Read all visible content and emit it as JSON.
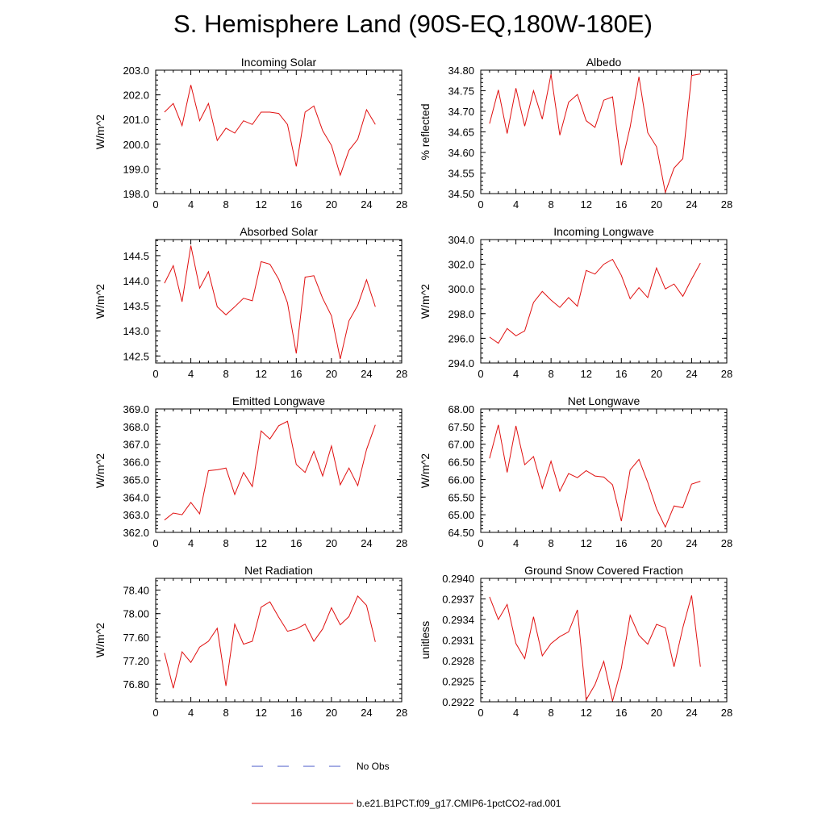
{
  "page_title": "S. Hemisphere Land (90S-EQ,180W-180E)",
  "legend": {
    "no_obs_label": "No Obs",
    "no_obs_color": "#4a5ac8",
    "run_label": "b.e21.B1PCT.f09_g17.CMIP6-1pctCO2-rad.001",
    "run_color": "#e01010"
  },
  "chart_data": [
    {
      "type": "line",
      "title": "Incoming Solar",
      "xlabel": "",
      "ylabel": "W/m^2",
      "xlim": [
        0,
        28
      ],
      "ylim": [
        198.0,
        203.0
      ],
      "xticks": [
        "0",
        "4",
        "8",
        "12",
        "16",
        "20",
        "24",
        "28"
      ],
      "yticks": [
        "198.0",
        "199.0",
        "200.0",
        "201.0",
        "202.0",
        "203.0"
      ],
      "series": [
        {
          "color": "#e01010",
          "x": [
            1,
            2,
            3,
            4,
            5,
            6,
            7,
            8,
            9,
            10,
            11,
            12,
            13,
            14,
            15,
            16,
            17,
            18,
            19,
            20,
            21,
            22,
            23,
            24,
            25
          ],
          "y": [
            201.3,
            201.65,
            200.75,
            202.4,
            200.95,
            201.65,
            200.15,
            200.65,
            200.45,
            200.95,
            200.8,
            201.3,
            201.3,
            201.25,
            200.8,
            199.1,
            201.3,
            201.55,
            200.55,
            199.95,
            198.75,
            199.75,
            200.2,
            201.4,
            200.8
          ]
        }
      ]
    },
    {
      "type": "line",
      "title": "Albedo",
      "xlabel": "",
      "ylabel": "% reflected",
      "xlim": [
        0,
        28
      ],
      "ylim": [
        34.5,
        34.8
      ],
      "xticks": [
        "0",
        "4",
        "8",
        "12",
        "16",
        "20",
        "24",
        "28"
      ],
      "yticks": [
        "34.50",
        "34.55",
        "34.60",
        "34.65",
        "34.70",
        "34.75",
        "34.80"
      ],
      "series": [
        {
          "color": "#e01010",
          "x": [
            1,
            2,
            3,
            4,
            5,
            6,
            7,
            8,
            9,
            10,
            11,
            12,
            13,
            14,
            15,
            16,
            17,
            18,
            19,
            20,
            21,
            22,
            23,
            24,
            25
          ],
          "y": [
            34.67,
            34.752,
            34.646,
            34.756,
            34.664,
            34.75,
            34.681,
            34.79,
            34.642,
            34.722,
            34.741,
            34.677,
            34.661,
            34.727,
            34.735,
            34.569,
            34.662,
            34.784,
            34.648,
            34.614,
            34.503,
            34.562,
            34.585,
            34.787,
            34.791
          ]
        }
      ]
    },
    {
      "type": "line",
      "title": "Absorbed Solar",
      "xlabel": "",
      "ylabel": "W/m^2",
      "xlim": [
        0,
        28
      ],
      "ylim": [
        142.36,
        144.82
      ],
      "xticks": [
        "0",
        "4",
        "8",
        "12",
        "16",
        "20",
        "24",
        "28"
      ],
      "yticks": [
        "142.5",
        "143.0",
        "143.5",
        "144.0",
        "144.5"
      ],
      "series": [
        {
          "color": "#e01010",
          "x": [
            1,
            2,
            3,
            4,
            5,
            6,
            7,
            8,
            9,
            10,
            11,
            12,
            13,
            14,
            15,
            16,
            17,
            18,
            19,
            20,
            21,
            22,
            23,
            24,
            25
          ],
          "y": [
            143.95,
            144.3,
            143.58,
            144.7,
            143.85,
            144.18,
            143.48,
            143.32,
            143.48,
            143.65,
            143.6,
            144.38,
            144.33,
            144.03,
            143.56,
            142.55,
            144.07,
            144.1,
            143.65,
            143.3,
            142.44,
            143.2,
            143.51,
            144.02,
            143.48
          ]
        }
      ]
    },
    {
      "type": "line",
      "title": "Incoming Longwave",
      "xlabel": "",
      "ylabel": "W/m^2",
      "xlim": [
        0,
        28
      ],
      "ylim": [
        294.0,
        304.0
      ],
      "xticks": [
        "0",
        "4",
        "8",
        "12",
        "16",
        "20",
        "24",
        "28"
      ],
      "yticks": [
        "294.0",
        "296.0",
        "298.0",
        "300.0",
        "302.0",
        "304.0"
      ],
      "series": [
        {
          "color": "#e01010",
          "x": [
            1,
            2,
            3,
            4,
            5,
            6,
            7,
            8,
            9,
            10,
            11,
            12,
            13,
            14,
            15,
            16,
            17,
            18,
            19,
            20,
            21,
            22,
            23,
            24,
            25
          ],
          "y": [
            296.1,
            295.6,
            296.8,
            296.2,
            296.6,
            298.9,
            299.8,
            299.1,
            298.5,
            299.3,
            298.6,
            301.5,
            301.2,
            302.0,
            302.4,
            301.1,
            299.2,
            300.1,
            299.3,
            301.7,
            300.0,
            300.4,
            299.4,
            300.8,
            302.1
          ]
        }
      ]
    },
    {
      "type": "line",
      "title": "Emitted Longwave",
      "xlabel": "",
      "ylabel": "W/m^2",
      "xlim": [
        0,
        28
      ],
      "ylim": [
        362.0,
        369.0
      ],
      "xticks": [
        "0",
        "4",
        "8",
        "12",
        "16",
        "20",
        "24",
        "28"
      ],
      "yticks": [
        "362.0",
        "363.0",
        "364.0",
        "365.0",
        "366.0",
        "367.0",
        "368.0",
        "369.0"
      ],
      "series": [
        {
          "color": "#e01010",
          "x": [
            1,
            2,
            3,
            4,
            5,
            6,
            7,
            8,
            9,
            10,
            11,
            12,
            13,
            14,
            15,
            16,
            17,
            18,
            19,
            20,
            21,
            22,
            23,
            24,
            25
          ],
          "y": [
            362.7,
            363.1,
            363.0,
            363.7,
            363.05,
            365.5,
            365.55,
            365.65,
            364.15,
            365.4,
            364.6,
            367.75,
            367.3,
            368.05,
            368.3,
            365.85,
            365.4,
            366.6,
            365.2,
            366.9,
            364.7,
            365.65,
            364.65,
            366.7,
            368.1
          ]
        }
      ]
    },
    {
      "type": "line",
      "title": "Net Longwave",
      "xlabel": "",
      "ylabel": "W/m^2",
      "xlim": [
        0,
        28
      ],
      "ylim": [
        64.5,
        68.0
      ],
      "xticks": [
        "0",
        "4",
        "8",
        "12",
        "16",
        "20",
        "24",
        "28"
      ],
      "yticks": [
        "64.50",
        "65.00",
        "65.50",
        "66.00",
        "66.50",
        "67.00",
        "67.50",
        "68.00"
      ],
      "series": [
        {
          "color": "#e01010",
          "x": [
            1,
            2,
            3,
            4,
            5,
            6,
            7,
            8,
            9,
            10,
            11,
            12,
            13,
            14,
            15,
            16,
            17,
            18,
            19,
            20,
            21,
            22,
            23,
            24,
            25
          ],
          "y": [
            66.6,
            67.55,
            66.2,
            67.52,
            66.42,
            66.65,
            65.75,
            66.52,
            65.67,
            66.17,
            66.05,
            66.25,
            66.1,
            66.07,
            65.85,
            64.82,
            66.27,
            66.57,
            65.92,
            65.17,
            64.65,
            65.25,
            65.2,
            65.87,
            65.95
          ]
        }
      ]
    },
    {
      "type": "line",
      "title": "Net Radiation",
      "xlabel": "",
      "ylabel": "W/m^2",
      "xlim": [
        0,
        28
      ],
      "ylim": [
        76.5,
        78.6
      ],
      "xticks": [
        "0",
        "4",
        "8",
        "12",
        "16",
        "20",
        "24",
        "28"
      ],
      "yticks": [
        "76.80",
        "77.20",
        "77.60",
        "78.00",
        "78.40"
      ],
      "series": [
        {
          "color": "#e01010",
          "x": [
            1,
            2,
            3,
            4,
            5,
            6,
            7,
            8,
            9,
            10,
            11,
            12,
            13,
            14,
            15,
            16,
            17,
            18,
            19,
            20,
            21,
            22,
            23,
            24,
            25
          ],
          "y": [
            77.33,
            76.73,
            77.35,
            77.17,
            77.43,
            77.53,
            77.75,
            76.77,
            77.82,
            77.48,
            77.53,
            78.11,
            78.2,
            77.94,
            77.7,
            77.74,
            77.82,
            77.53,
            77.74,
            78.1,
            77.81,
            77.95,
            78.3,
            78.14,
            77.52
          ]
        }
      ]
    },
    {
      "type": "line",
      "title": "Ground Snow Covered Fraction",
      "xlabel": "",
      "ylabel": "unitless",
      "xlim": [
        0,
        28
      ],
      "ylim": [
        0.2922,
        0.294
      ],
      "xticks": [
        "0",
        "4",
        "8",
        "12",
        "16",
        "20",
        "24",
        "28"
      ],
      "yticks": [
        "0.2922",
        "0.2925",
        "0.2928",
        "0.2931",
        "0.2934",
        "0.2937",
        "0.2940"
      ],
      "series": [
        {
          "color": "#e01010",
          "x": [
            1,
            2,
            3,
            4,
            5,
            6,
            7,
            8,
            9,
            10,
            11,
            12,
            13,
            14,
            15,
            16,
            17,
            18,
            19,
            20,
            21,
            22,
            23,
            24,
            25
          ],
          "y": [
            0.29373,
            0.2934,
            0.29362,
            0.29305,
            0.29283,
            0.29344,
            0.29287,
            0.29305,
            0.29315,
            0.29322,
            0.29354,
            0.29223,
            0.29245,
            0.29279,
            0.29221,
            0.29269,
            0.29346,
            0.29317,
            0.29304,
            0.29333,
            0.29328,
            0.29271,
            0.29328,
            0.29375,
            0.29271
          ]
        }
      ]
    }
  ]
}
